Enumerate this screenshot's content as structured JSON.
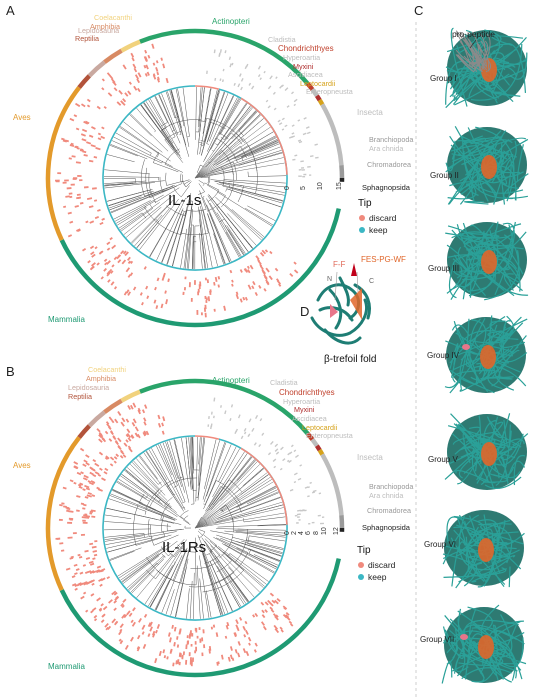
{
  "panels": {
    "A": {
      "letter": "A",
      "center": "IL-1s",
      "ticks": [
        "0",
        "5",
        "10",
        "15"
      ]
    },
    "B": {
      "letter": "B",
      "center": "IL-1Rs",
      "ticks": [
        "0",
        "2",
        "4",
        "6",
        "8",
        "10",
        "12"
      ]
    },
    "C": {
      "letter": "C",
      "pro_peptide": "pro-peptide",
      "groups": [
        "Group I",
        "Group II",
        "Group III",
        "Group IV",
        "Group V",
        "Group VI",
        "Group VII"
      ]
    },
    "D": {
      "letter": "D",
      "fold_label": "β-trefoil fold",
      "ff": "F-F",
      "fes": "FES-PG-WF",
      "n": "N",
      "c": "C"
    }
  },
  "clades": {
    "actinopteri": "Actinopteri",
    "cladistia": "Cladistia",
    "chondrichthyes": "Chondrichthyes",
    "hyperoartia": "Hyperoartia",
    "myxini": "Myxini",
    "ascidiacea": "Ascidiacea",
    "leptocardii": "Leptocardii",
    "enteropneusta": "Enteropneusta",
    "insecta": "Insecta",
    "branchiopoda": "Branchiopoda",
    "ara_chnida": "Ara chnida",
    "chromadorea": "Chromadorea",
    "sphagnopsida": "Sphagnopsida",
    "mammalia": "Mammalia",
    "aves": "Aves",
    "reptilia": "Reptilia",
    "lepidosauria": "Lepidosauria",
    "amphibia": "Amphibia",
    "coelacanthi": "Coelacanthi"
  },
  "legend": {
    "title": "Tip",
    "items": [
      "discard",
      "keep"
    ]
  },
  "colors": {
    "discard": "#f08a7d",
    "keep": "#3bb7c4",
    "mammalia": "#1f9a73",
    "aves": "#e39a2b",
    "actinopteri": "#2aa46a",
    "reptilia": "#b2533a",
    "lepidosauria": "#c9a9a0",
    "amphibia": "#d88a63",
    "coelacanthi": "#f1d27d",
    "insecta": "#bdbdbd",
    "chondrichthyes": "#c0402c",
    "myxini": "#b02f2f",
    "leptocardii": "#d5a21b",
    "muted": "#b8b8b8",
    "teal_structure": "#1e7d74",
    "orange_core": "#e0662a",
    "grey_peptide": "#8a8a8a",
    "tree": "#555555"
  }
}
